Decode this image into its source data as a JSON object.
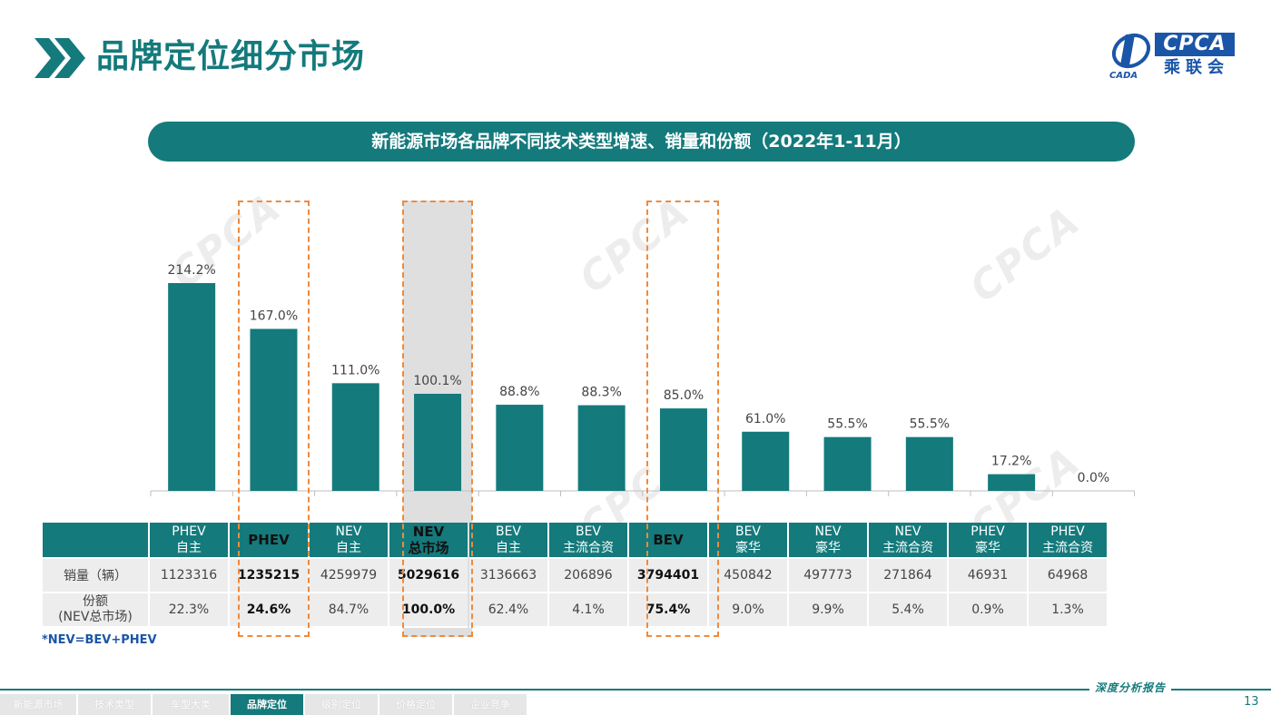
{
  "header": {
    "title": "品牌定位细分市场",
    "logo_text": "CPCA",
    "logo_sub": "乘联会",
    "logo_mark_text": "CADA"
  },
  "banner": {
    "text": "新能源市场各品牌不同技术类型增速、销量和份额（2022年1-11月）"
  },
  "watermark_text": "CPCA",
  "chart_data": {
    "type": "bar",
    "categories": [
      "PHEV 自主",
      "PHEV",
      "NEV 自主",
      "NEV 总市场",
      "BEV 自主",
      "BEV 主流合资",
      "BEV",
      "BEV 豪华",
      "NEV 豪华",
      "NEV 主流合资",
      "PHEV 豪华",
      "PHEV 主流合资"
    ],
    "values": [
      214.2,
      167.0,
      111.0,
      100.1,
      88.8,
      88.3,
      85.0,
      61.0,
      55.5,
      55.5,
      17.2,
      0.0
    ],
    "data_labels": [
      "214.2%",
      "167.0%",
      "111.0%",
      "100.1%",
      "88.8%",
      "88.3%",
      "85.0%",
      "61.0%",
      "55.5%",
      "55.5%",
      "17.2%",
      "0.0%"
    ],
    "unit": "%",
    "ylim": [
      0,
      230
    ],
    "bar_color": "#147a7c",
    "highlight_color": "#f08a3c",
    "highlighted_categories": [
      "PHEV",
      "NEV 总市场",
      "BEV"
    ],
    "shaded_category": "NEV 总市场",
    "grid": false,
    "legend": "none",
    "title": "",
    "xlabel": "",
    "ylabel": ""
  },
  "table": {
    "columns": [
      {
        "line1": "PHEV",
        "line2": "自主",
        "bold": false
      },
      {
        "line1": "PHEV",
        "line2": "",
        "bold": true
      },
      {
        "line1": "NEV",
        "line2": "自主",
        "bold": false
      },
      {
        "line1": "NEV",
        "line2": "总市场",
        "bold": true
      },
      {
        "line1": "BEV",
        "line2": "自主",
        "bold": false
      },
      {
        "line1": "BEV",
        "line2": "主流合资",
        "bold": false
      },
      {
        "line1": "BEV",
        "line2": "",
        "bold": true
      },
      {
        "line1": "BEV",
        "line2": "豪华",
        "bold": false
      },
      {
        "line1": "NEV",
        "line2": "豪华",
        "bold": false
      },
      {
        "line1": "NEV",
        "line2": "主流合资",
        "bold": false
      },
      {
        "line1": "PHEV",
        "line2": "豪华",
        "bold": false
      },
      {
        "line1": "PHEV",
        "line2": "主流合资",
        "bold": false
      }
    ],
    "sales_label": "销量（辆）",
    "sales": [
      "1123316",
      "1235215",
      "4259979",
      "5029616",
      "3136663",
      "206896",
      "3794401",
      "450842",
      "497773",
      "271864",
      "46931",
      "64968"
    ],
    "share_label_line1": "份额",
    "share_label_line2": "(NEV总市场)",
    "shares": [
      "22.3%",
      "24.6%",
      "84.7%",
      "100.0%",
      "62.4%",
      "4.1%",
      "75.4%",
      "9.0%",
      "9.9%",
      "5.4%",
      "0.9%",
      "1.3%"
    ]
  },
  "footnote": "*NEV=BEV+PHEV",
  "footer": {
    "tagline": "深度分析报告",
    "page_number": "13",
    "nav": [
      {
        "label": "新能源市场",
        "active": false
      },
      {
        "label": "技术类型",
        "active": false
      },
      {
        "label": "车型大类",
        "active": false
      },
      {
        "label": "品牌定位",
        "active": true
      },
      {
        "label": "级别定位",
        "active": false
      },
      {
        "label": "价格定位",
        "active": false
      },
      {
        "label": "企业竞争",
        "active": false
      }
    ]
  }
}
